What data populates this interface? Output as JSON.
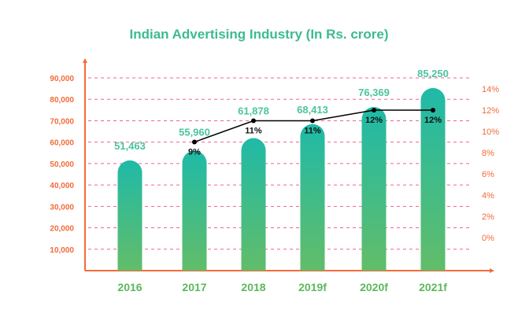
{
  "chart_data": {
    "type": "bar",
    "title": "Indian Advertising Industry (In Rs. crore)",
    "categories": [
      "2016",
      "2017",
      "2018",
      "2019f",
      "2020f",
      "2021f"
    ],
    "series": [
      {
        "type": "bar",
        "axis": "left",
        "values": [
          51463,
          55960,
          61878,
          68413,
          76369,
          85250
        ],
        "labels": [
          "51,463",
          "55,960",
          "61,878",
          "68,413",
          "76,369",
          "85,250"
        ]
      },
      {
        "type": "line",
        "axis": "right",
        "values": [
          null,
          9,
          11,
          11,
          12,
          12
        ],
        "labels": [
          "",
          "9%",
          "11%",
          "11%",
          "12%",
          "12%"
        ]
      }
    ],
    "left_axis": {
      "ylim": [
        0,
        90000
      ],
      "ticks": [
        "10,000",
        "20,000",
        "30,000",
        "40,000",
        "50,000",
        "60,000",
        "70,000",
        "80,000",
        "90,000"
      ]
    },
    "right_axis": {
      "ylim": [
        0,
        14
      ],
      "ticks": [
        "0%",
        "2%",
        "4%",
        "6%",
        "8%",
        "10%",
        "12%",
        "14%"
      ]
    },
    "grid": true,
    "colors": {
      "title": "#3dbb8f",
      "axis": "#f26b3a",
      "grid": "#f06292",
      "bar_top": "#1fbaa8",
      "bar_bottom": "#62bd69",
      "line": "#000000",
      "category": "#5cb85c",
      "value": "#4cc3a0"
    }
  }
}
